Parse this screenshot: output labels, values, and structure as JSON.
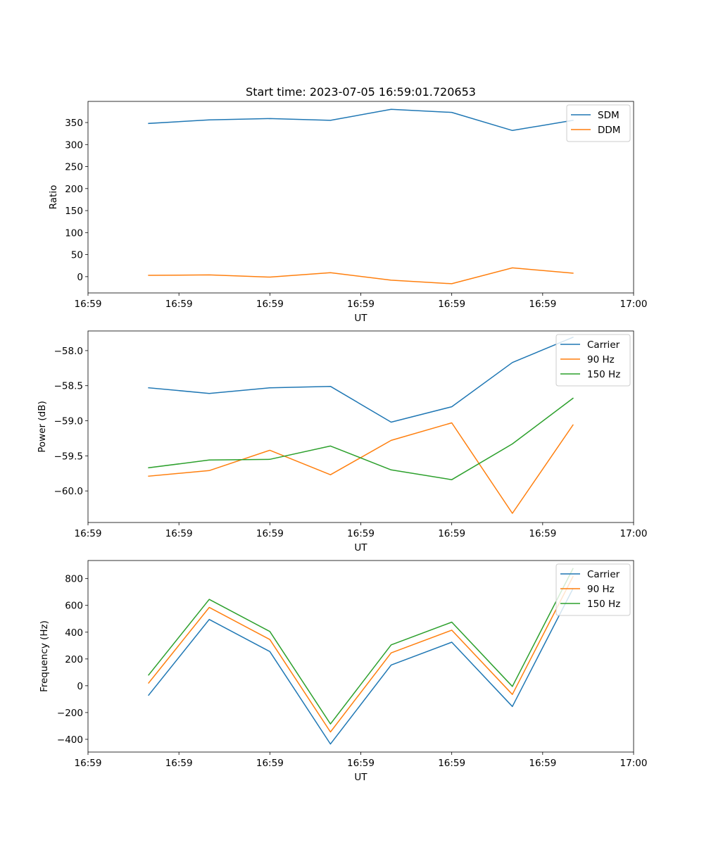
{
  "chart_data": [
    {
      "type": "line",
      "title": "Start time: 2023-07-05 16:59:01.720653",
      "xlabel": "UT",
      "ylabel": "Ratio",
      "grid": false,
      "legend_position": "top-right",
      "xlim": [
        0,
        9
      ],
      "x": [
        1,
        2,
        3,
        4,
        5,
        6,
        7,
        8
      ],
      "xticks": [
        0,
        1.5,
        3,
        4.5,
        6,
        7.5,
        9
      ],
      "xtick_labels": [
        "16:59",
        "16:59",
        "16:59",
        "16:59",
        "16:59",
        "16:59",
        "17:00"
      ],
      "ylim": [
        -37,
        398
      ],
      "yticks": [
        0,
        50,
        100,
        150,
        200,
        250,
        300,
        350
      ],
      "ytick_labels": [
        "0",
        "50",
        "100",
        "150",
        "200",
        "250",
        "300",
        "350"
      ],
      "series": [
        {
          "name": "SDM",
          "color": "#1f77b4",
          "values": [
            348,
            356,
            359,
            355,
            380,
            373,
            332,
            355
          ]
        },
        {
          "name": "DDM",
          "color": "#ff7f0e",
          "values": [
            3,
            4,
            -1,
            9,
            -8,
            -16,
            20,
            8
          ]
        }
      ]
    },
    {
      "type": "line",
      "title": "",
      "xlabel": "UT",
      "ylabel": "Power (dB)",
      "grid": false,
      "legend_position": "top-right",
      "xlim": [
        0,
        9
      ],
      "x": [
        1,
        2,
        3,
        4,
        5,
        6,
        7,
        8
      ],
      "xticks": [
        0,
        1.5,
        3,
        4.5,
        6,
        7.5,
        9
      ],
      "xtick_labels": [
        "16:59",
        "16:59",
        "16:59",
        "16:59",
        "16:59",
        "16:59",
        "17:00"
      ],
      "ylim": [
        -60.45,
        -57.72
      ],
      "yticks": [
        -60.0,
        -59.5,
        -59.0,
        -58.5,
        -58.0
      ],
      "ytick_labels": [
        "−60.0",
        "−59.5",
        "−59.0",
        "−58.5",
        "−58.0"
      ],
      "series": [
        {
          "name": "Carrier",
          "color": "#1f77b4",
          "values": [
            -58.53,
            -58.61,
            -58.53,
            -58.51,
            -59.02,
            -58.8,
            -58.17,
            -57.81
          ]
        },
        {
          "name": "90 Hz",
          "color": "#ff7f0e",
          "values": [
            -59.79,
            -59.71,
            -59.42,
            -59.77,
            -59.28,
            -59.03,
            -60.32,
            -59.06
          ]
        },
        {
          "name": "150 Hz",
          "color": "#2ca02c",
          "values": [
            -59.67,
            -59.56,
            -59.55,
            -59.36,
            -59.7,
            -59.84,
            -59.33,
            -58.68
          ]
        }
      ]
    },
    {
      "type": "line",
      "title": "",
      "xlabel": "UT",
      "ylabel": "Frequency (Hz)",
      "grid": false,
      "legend_position": "top-right",
      "xlim": [
        0,
        9
      ],
      "x": [
        1,
        2,
        3,
        4,
        5,
        6,
        7,
        8
      ],
      "xticks": [
        0,
        1.5,
        3,
        4.5,
        6,
        7.5,
        9
      ],
      "xtick_labels": [
        "16:59",
        "16:59",
        "16:59",
        "16:59",
        "16:59",
        "16:59",
        "17:00"
      ],
      "ylim": [
        -495,
        935
      ],
      "yticks": [
        -400,
        -200,
        0,
        200,
        400,
        600,
        800
      ],
      "ytick_labels": [
        "−400",
        "−200",
        "0",
        "200",
        "400",
        "600",
        "800"
      ],
      "series": [
        {
          "name": "Carrier",
          "color": "#1f77b4",
          "values": [
            -70,
            495,
            255,
            -435,
            155,
            325,
            -155,
            725
          ]
        },
        {
          "name": "90 Hz",
          "color": "#ff7f0e",
          "values": [
            20,
            585,
            345,
            -345,
            245,
            415,
            -65,
            815
          ]
        },
        {
          "name": "150 Hz",
          "color": "#2ca02c",
          "values": [
            80,
            645,
            405,
            -285,
            305,
            475,
            -5,
            875
          ]
        }
      ]
    }
  ]
}
